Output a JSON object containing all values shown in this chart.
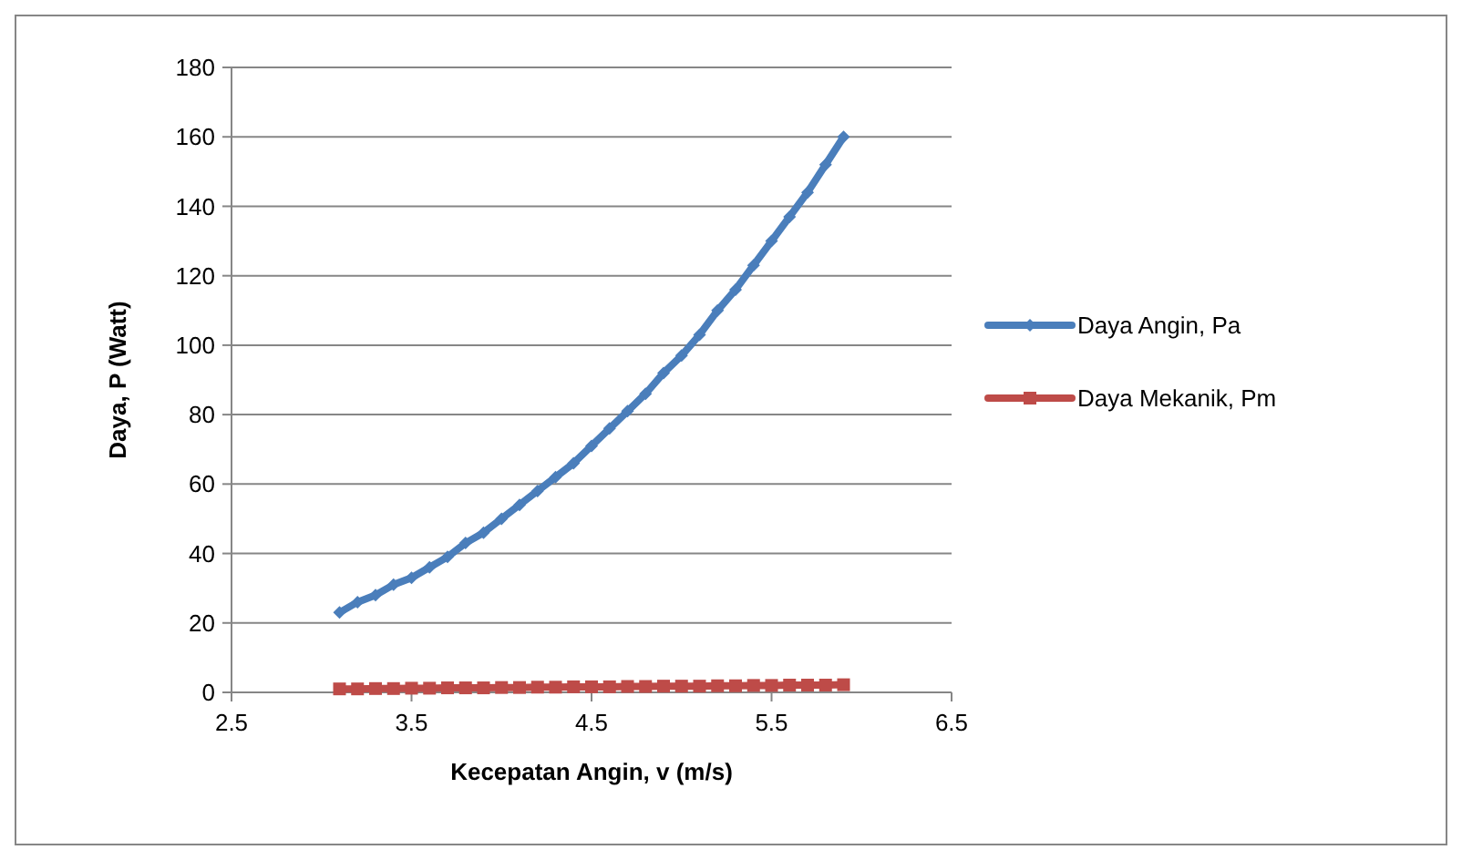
{
  "chart_data": {
    "type": "line",
    "xlabel": "Kecepatan Angin, v (m/s)",
    "ylabel": "Daya, P (Watt)",
    "x": [
      3.1,
      3.2,
      3.3,
      3.4,
      3.5,
      3.6,
      3.7,
      3.8,
      3.9,
      4.0,
      4.1,
      4.2,
      4.3,
      4.4,
      4.5,
      4.6,
      4.7,
      4.8,
      4.9,
      5.0,
      5.1,
      5.2,
      5.3,
      5.4,
      5.5,
      5.6,
      5.7,
      5.8,
      5.9
    ],
    "series": [
      {
        "name": "Daya Angin, Pa",
        "color": "#4a7ebb",
        "marker": "diamond",
        "values": [
          23,
          26,
          28,
          31,
          33,
          36,
          39,
          43,
          46,
          50,
          54,
          58,
          62,
          66,
          71,
          76,
          81,
          86,
          92,
          97,
          103,
          110,
          116,
          123,
          130,
          137,
          144,
          152,
          160
        ]
      },
      {
        "name": "Daya Mekanik, Pm",
        "color": "#be4b48",
        "marker": "square",
        "values": [
          1.0,
          1.0,
          1.1,
          1.1,
          1.2,
          1.2,
          1.3,
          1.3,
          1.3,
          1.4,
          1.4,
          1.5,
          1.5,
          1.6,
          1.6,
          1.6,
          1.7,
          1.7,
          1.8,
          1.8,
          1.8,
          1.9,
          1.9,
          2.0,
          2.0,
          2.1,
          2.1,
          2.1,
          2.2
        ]
      }
    ],
    "xlim": [
      2.5,
      6.5
    ],
    "xticks": [
      2.5,
      3.5,
      4.5,
      5.5,
      6.5
    ],
    "ylim": [
      0,
      180
    ],
    "yticks": [
      0,
      20,
      40,
      60,
      80,
      100,
      120,
      140,
      160,
      180
    ],
    "grid": "y",
    "legend": "right",
    "line_style": "solid"
  }
}
